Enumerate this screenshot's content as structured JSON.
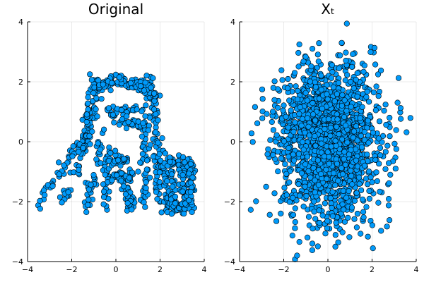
{
  "chart_data": [
    {
      "type": "scatter",
      "title": "Original",
      "xlim": [
        -4,
        4
      ],
      "ylim": [
        -4,
        4
      ],
      "xticks": [
        "-4",
        "-2",
        "0",
        "2",
        "4"
      ],
      "yticks": [
        "-4",
        "-2",
        "0",
        "2",
        "4"
      ],
      "grid": true,
      "legend": "none",
      "marker_color": "#009AFA",
      "shape": {
        "description_strokes": [
          {
            "from": [
              -0.9,
              2.2
            ],
            "to": [
              -1.0,
              0.8
            ]
          },
          {
            "from": [
              -0.7,
              1.8
            ],
            "to": [
              0.0,
              2.1
            ]
          },
          {
            "from": [
              0.0,
              2.1
            ],
            "to": [
              0.9,
              1.9
            ]
          },
          {
            "from": [
              1.5,
              2.3
            ],
            "to": [
              1.8,
              0.6
            ]
          },
          {
            "from": [
              1.1,
              2.0
            ],
            "to": [
              1.8,
              1.4
            ]
          },
          {
            "from": [
              -0.4,
              1.0
            ],
            "to": [
              1.3,
              1.1
            ]
          },
          {
            "from": [
              0.0,
              0.7
            ],
            "to": [
              1.4,
              0.5
            ]
          },
          {
            "from": [
              -1.2,
              1.3
            ],
            "to": [
              -1.5,
              -0.3
            ]
          },
          {
            "from": [
              -1.4,
              0.2
            ],
            "to": [
              -3.5,
              -2.1
            ]
          },
          {
            "from": [
              -1.0,
              0.7
            ],
            "to": [
              -2.4,
              -2.1
            ]
          },
          {
            "from": [
              -0.6,
              0.4
            ],
            "to": [
              -1.3,
              -2.3
            ]
          },
          {
            "from": [
              -0.3,
              -0.2
            ],
            "to": [
              -0.5,
              -2.2
            ]
          },
          {
            "from": [
              0.0,
              -0.6
            ],
            "to": [
              0.4,
              -0.6
            ]
          },
          {
            "from": [
              0.0,
              -1.1
            ],
            "to": [
              0.7,
              -1.2
            ]
          },
          {
            "from": [
              0.4,
              -1.5
            ],
            "to": [
              0.7,
              -2.2
            ]
          },
          {
            "from": [
              1.3,
              0.4
            ],
            "to": [
              1.3,
              -2.2
            ]
          },
          {
            "from": [
              1.7,
              0.2
            ],
            "to": [
              2.0,
              -2.2
            ]
          },
          {
            "from": [
              2.0,
              0.0
            ],
            "to": [
              2.4,
              -2.2
            ]
          },
          {
            "from": [
              2.2,
              -0.7
            ],
            "to": [
              3.5,
              -0.7
            ]
          },
          {
            "from": [
              2.2,
              -2.2
            ],
            "to": [
              3.5,
              -2.2
            ]
          },
          {
            "from": [
              2.5,
              -0.6
            ],
            "to": [
              2.6,
              -2.2
            ]
          },
          {
            "from": [
              3.0,
              -0.6
            ],
            "to": [
              3.1,
              -2.3
            ]
          },
          {
            "from": [
              3.4,
              -0.7
            ],
            "to": [
              3.4,
              -2.2
            ]
          }
        ],
        "count": 900,
        "jitter": 0.1
      }
    },
    {
      "type": "scatter",
      "title": "Xₜ",
      "xlim": [
        -4,
        4
      ],
      "ylim": [
        -4,
        4
      ],
      "xticks": [
        "-4",
        "-2",
        "0",
        "2",
        "4"
      ],
      "yticks": [
        "-4",
        "-2",
        "0",
        "2",
        "4"
      ],
      "grid": true,
      "legend": "none",
      "marker_color": "#009AFA",
      "distribution": {
        "mean": [
          0.0,
          0.0
        ],
        "std": [
          1.15,
          1.25
        ],
        "count": 1800
      }
    }
  ]
}
